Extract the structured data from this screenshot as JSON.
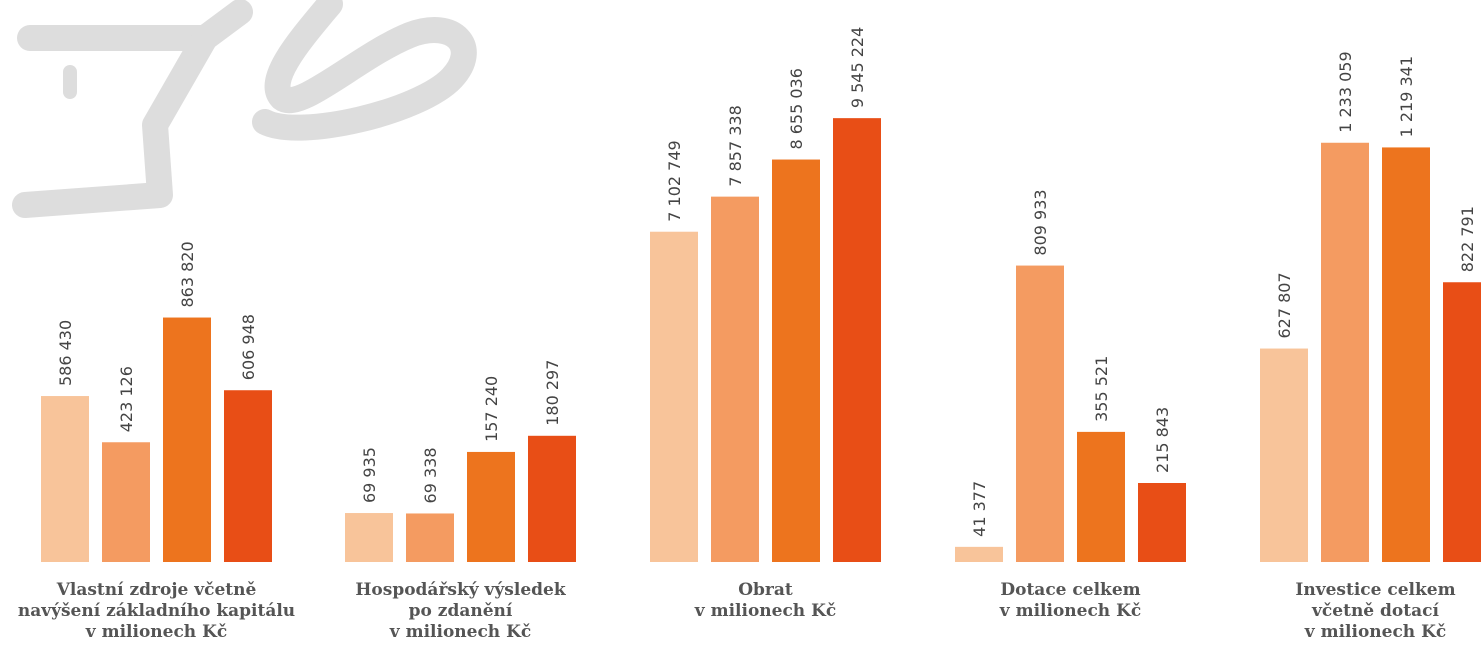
{
  "colors": [
    "#F8C49A",
    "#F49B61",
    "#ED741E",
    "#E84E16"
  ],
  "decoration": {
    "name": "open-hand-icon",
    "color": "#DDDDDD"
  },
  "chart_data": [
    {
      "type": "bar",
      "values": [
        586430,
        423126,
        863820,
        606948
      ],
      "labels": [
        "586 430",
        "423 126",
        "863 820",
        "606 948"
      ],
      "caption": [
        "Vlastní zdroje včetně",
        "navýšení základního kapitálu",
        "v milionech Kč"
      ]
    },
    {
      "type": "bar",
      "values": [
        69935,
        69338,
        157240,
        180297
      ],
      "labels": [
        "69 935",
        "69 338",
        "157 240",
        "180 297"
      ],
      "caption": [
        "Hospodářský výsledek",
        "po zdanění",
        "v milionech Kč"
      ]
    },
    {
      "type": "bar",
      "values": [
        7102749,
        7857338,
        8655036,
        9545224
      ],
      "labels": [
        "7 102 749",
        "7 857 338",
        "8 655 036",
        "9 545 224"
      ],
      "caption": [
        "Obrat",
        "v milionech Kč"
      ]
    },
    {
      "type": "bar",
      "values": [
        41377,
        809933,
        355521,
        215843
      ],
      "labels": [
        "41 377",
        "809 933",
        "355 521",
        "215 843"
      ],
      "caption": [
        "Dotace celkem",
        "v milionech Kč"
      ]
    },
    {
      "type": "bar",
      "values": [
        627807,
        1233059,
        1219341,
        822791
      ],
      "labels": [
        "627 807",
        "1 233 059",
        "1 219 341",
        "822 791"
      ],
      "caption": [
        "Investice celkem",
        "včetně dotací",
        "v milionech Kč"
      ]
    }
  ]
}
